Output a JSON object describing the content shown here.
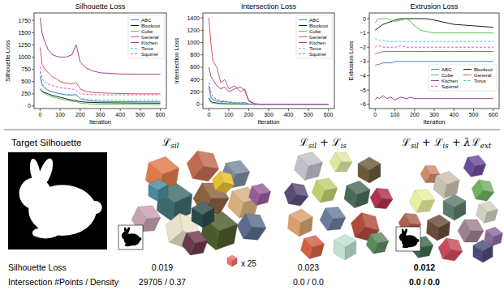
{
  "chart_data": [
    {
      "type": "line",
      "title": "Silhouette Loss",
      "x_label": "Iteration",
      "y_label": "Silhouette Loss",
      "x": [
        0,
        10,
        20,
        40,
        60,
        80,
        100,
        130,
        160,
        180,
        200,
        230,
        260,
        300,
        400,
        500,
        600
      ],
      "xlim": [
        -30,
        630
      ],
      "xticks": [
        0,
        100,
        200,
        300,
        400,
        500,
        600
      ],
      "ylim": [
        -50,
        1900
      ],
      "yticks": [
        0,
        250,
        500,
        750,
        1000,
        1250,
        1500,
        1750
      ],
      "grid": false,
      "legend": "upper right",
      "series": [
        {
          "name": "ABC",
          "color": "#3b6fd0",
          "line_style": "solid",
          "values": [
            600,
            430,
            380,
            320,
            290,
            270,
            250,
            230,
            220,
            240,
            150,
            120,
            105,
            95,
            90,
            88,
            87
          ]
        },
        {
          "name": "Blockout",
          "color": "#000000",
          "line_style": "solid",
          "values": [
            350,
            310,
            280,
            250,
            220,
            200,
            180,
            150,
            120,
            110,
            90,
            80,
            75,
            70,
            65,
            62,
            60
          ]
        },
        {
          "name": "Cube",
          "color": "#3fbf3f",
          "line_style": "solid",
          "values": [
            330,
            290,
            260,
            220,
            190,
            170,
            150,
            120,
            100,
            90,
            60,
            50,
            45,
            40,
            35,
            32,
            30
          ]
        },
        {
          "name": "General",
          "color": "#d0404a",
          "line_style": "solid",
          "values": [
            1200,
            850,
            780,
            680,
            600,
            560,
            500,
            470,
            450,
            480,
            350,
            300,
            280,
            270,
            255,
            250,
            250
          ]
        },
        {
          "name": "Kitchen",
          "color": "#8b2f8b",
          "line_style": "solid",
          "values": [
            1800,
            1500,
            1350,
            1150,
            1050,
            1020,
            1000,
            1000,
            1050,
            1250,
            900,
            780,
            720,
            680,
            655,
            650,
            650
          ]
        },
        {
          "name": "Torus",
          "color": "#2ec4d6",
          "line_style": "dashed",
          "values": [
            700,
            450,
            400,
            330,
            300,
            280,
            260,
            240,
            230,
            220,
            160,
            140,
            130,
            125,
            120,
            118,
            118
          ]
        },
        {
          "name": "Squirrel",
          "color": "#e040c0",
          "line_style": "dashed",
          "values": [
            800,
            560,
            500,
            450,
            420,
            400,
            380,
            360,
            350,
            330,
            250,
            240,
            235,
            230,
            230,
            230,
            230
          ]
        }
      ]
    },
    {
      "type": "line",
      "title": "Intersection Loss",
      "x_label": "Iteration",
      "y_label": "Intersection Loss",
      "x": [
        0,
        10,
        20,
        40,
        60,
        80,
        100,
        130,
        160,
        180,
        200,
        230,
        260,
        300,
        400,
        500,
        600
      ],
      "xlim": [
        -30,
        630
      ],
      "xticks": [
        0,
        100,
        200,
        300,
        400,
        500,
        600
      ],
      "ylim": [
        -70,
        1480
      ],
      "yticks": [
        0,
        200,
        400,
        600,
        800,
        1000,
        1200,
        1400
      ],
      "grid": false,
      "legend": "upper right",
      "series": [
        {
          "name": "ABC",
          "color": "#3b6fd0",
          "line_style": "solid",
          "values": [
            300,
            120,
            80,
            60,
            40,
            40,
            30,
            20,
            20,
            30,
            5,
            0,
            0,
            0,
            0,
            0,
            0
          ]
        },
        {
          "name": "Blockout",
          "color": "#000000",
          "line_style": "solid",
          "values": [
            100,
            40,
            30,
            20,
            10,
            10,
            5,
            5,
            0,
            0,
            0,
            0,
            0,
            0,
            0,
            0,
            0
          ]
        },
        {
          "name": "Cube",
          "color": "#3fbf3f",
          "line_style": "solid",
          "values": [
            80,
            30,
            20,
            10,
            5,
            5,
            0,
            0,
            0,
            0,
            0,
            0,
            0,
            0,
            0,
            0,
            0
          ]
        },
        {
          "name": "General",
          "color": "#d0404a",
          "line_style": "solid",
          "values": [
            1400,
            1000,
            700,
            600,
            350,
            400,
            250,
            300,
            200,
            250,
            50,
            0,
            0,
            0,
            0,
            0,
            0
          ]
        },
        {
          "name": "Kitchen",
          "color": "#8b2f8b",
          "line_style": "solid",
          "values": [
            600,
            450,
            400,
            300,
            250,
            280,
            200,
            250,
            280,
            220,
            60,
            10,
            0,
            0,
            0,
            0,
            0
          ]
        },
        {
          "name": "Torus",
          "color": "#2ec4d6",
          "line_style": "dashed",
          "values": [
            250,
            100,
            60,
            40,
            30,
            20,
            20,
            10,
            10,
            10,
            0,
            0,
            0,
            0,
            0,
            0,
            0
          ]
        },
        {
          "name": "Squirrel",
          "color": "#e040c0",
          "line_style": "dashed",
          "values": [
            350,
            200,
            120,
            80,
            60,
            50,
            40,
            30,
            20,
            20,
            5,
            0,
            0,
            0,
            0,
            0,
            0
          ]
        }
      ]
    },
    {
      "type": "line",
      "title": "Extrusion Loss",
      "x_label": "Iteration",
      "y_label": "Extrusion Loss",
      "x": [
        0,
        10,
        20,
        40,
        60,
        80,
        100,
        130,
        160,
        180,
        200,
        230,
        260,
        300,
        400,
        500,
        600
      ],
      "xlim": [
        -30,
        630
      ],
      "xticks": [
        0,
        100,
        200,
        300,
        400,
        500,
        600
      ],
      "ylim": [
        -6.3,
        0.4
      ],
      "yticks": [
        {
          "value": -6,
          "label": "−6"
        },
        {
          "value": -5,
          "label": "−5"
        },
        {
          "value": -4,
          "label": "−4"
        },
        {
          "value": -3,
          "label": "−3"
        },
        {
          "value": -2,
          "label": "−2"
        },
        {
          "value": -1,
          "label": "−1"
        },
        0
      ],
      "grid": false,
      "legend": "lower right",
      "series": [
        {
          "name": "ABC",
          "color": "#3b6fd0",
          "line_style": "solid",
          "values": [
            -3.3,
            -3.2,
            -3.2,
            -3.1,
            -3.1,
            -3.1,
            -3.0,
            -3.0,
            -3.0,
            -3.0,
            -3.0,
            -3.0,
            -3.0,
            -3.0,
            -3.0,
            -3.0,
            -3.0
          ]
        },
        {
          "name": "Blockout",
          "color": "#000000",
          "line_style": "solid",
          "values": [
            -0.8,
            -0.7,
            -0.6,
            -0.4,
            -0.3,
            -0.2,
            -0.1,
            0,
            0,
            0,
            0,
            0,
            0,
            -0.1,
            -0.4,
            -0.5,
            -0.6
          ]
        },
        {
          "name": "Cube",
          "color": "#3fbf3f",
          "line_style": "solid",
          "values": [
            -0.3,
            -0.1,
            0,
            0,
            0,
            -0.1,
            -0.2,
            -0.1,
            0,
            -0.2,
            -0.5,
            -0.8,
            -0.9,
            -1.0,
            -1.0,
            -1.0,
            -1.0
          ]
        },
        {
          "name": "General",
          "color": "#d0404a",
          "line_style": "solid",
          "values": [
            -2.5,
            -2.4,
            -2.4,
            -2.3,
            -2.3,
            -2.3,
            -2.3,
            -2.3,
            -2.3,
            -2.3,
            -2.3,
            -2.3,
            -2.3,
            -2.3,
            -2.3,
            -2.3,
            -2.3
          ]
        },
        {
          "name": "Kitchen",
          "color": "#8b2f8b",
          "line_style": "solid",
          "values": [
            -5.7,
            -5.5,
            -5.6,
            -5.4,
            -5.6,
            -5.5,
            -5.7,
            -5.5,
            -5.6,
            -5.5,
            -5.6,
            -5.6,
            -5.6,
            -5.6,
            -5.6,
            -5.6,
            -5.6
          ]
        },
        {
          "name": "Torus",
          "color": "#2ec4d6",
          "line_style": "dashed",
          "values": [
            -1.4,
            -1.5,
            -1.5,
            -1.5,
            -1.6,
            -1.6,
            -1.6,
            -1.6,
            -1.6,
            -1.6,
            -1.6,
            -1.6,
            -1.6,
            -1.6,
            -1.6,
            -1.6,
            -1.6
          ]
        },
        {
          "name": "Squirrel",
          "color": "#e040c0",
          "line_style": "dashed",
          "values": [
            -2.0,
            -1.9,
            -1.9,
            -2.0,
            -2.0,
            -2.0,
            -2.0,
            -1.9,
            -2.0,
            -2.0,
            -2.0,
            -2.0,
            -2.0,
            -2.0,
            -2.0,
            -2.0,
            -2.0
          ]
        }
      ]
    }
  ],
  "figure": {
    "target_label": "Target Silhouette",
    "loss_symbol": "ℒ",
    "operator": "+",
    "columns": [
      {
        "terms": [
          {
            "sub": "sil"
          }
        ]
      },
      {
        "terms": [
          {
            "sub": "sil"
          },
          {
            "sub": "is"
          }
        ]
      },
      {
        "terms": [
          {
            "sub": "sil"
          },
          {
            "sub": "is"
          },
          {
            "coef": "λ",
            "sub": "ext"
          }
        ]
      }
    ],
    "cube_count_label": "x 25",
    "rows": [
      {
        "label": "Silhouette Loss",
        "values": [
          "0.019",
          "0.023",
          "0.012"
        ],
        "bold": [
          false,
          false,
          true
        ]
      },
      {
        "label": "Intersection #Points / Density",
        "values": [
          "29705 / 0.37",
          "0.0 / 0.0",
          "0.0 / 0.0"
        ],
        "bold": [
          false,
          false,
          true
        ]
      }
    ]
  }
}
